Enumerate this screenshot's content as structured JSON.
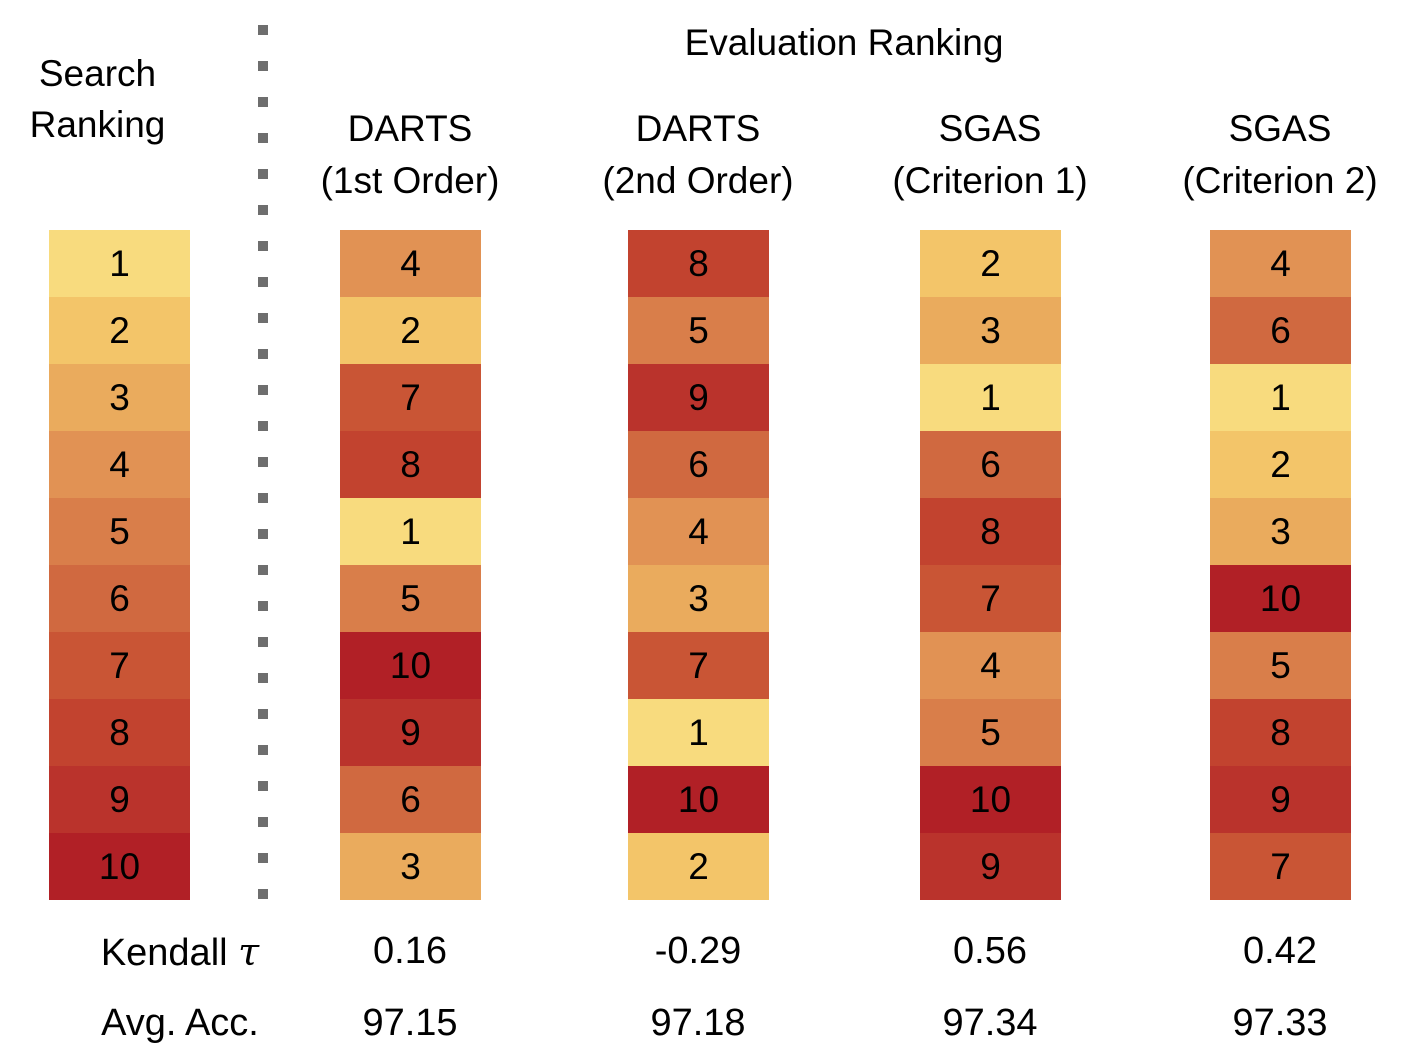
{
  "ui": {
    "search_label_line1": "Search",
    "search_label_line2": "Ranking",
    "eval_title": "Evaluation Ranking",
    "kendall_label": "Kendall",
    "tau_symbol": "τ",
    "avg_label": "Avg. Acc."
  },
  "chart_data": {
    "type": "heatmap",
    "title": "Evaluation Ranking",
    "row_axis_label": "Search Ranking",
    "search_ranking": [
      1,
      2,
      3,
      4,
      5,
      6,
      7,
      8,
      9,
      10
    ],
    "series": [
      {
        "name": "DARTS (1st Order)",
        "name_lines": [
          "DARTS",
          "(1st Order)"
        ],
        "evaluation_ranking": [
          4,
          2,
          7,
          8,
          1,
          5,
          10,
          9,
          6,
          3
        ],
        "kendall_tau": "0.16",
        "avg_acc": "97.15"
      },
      {
        "name": "DARTS (2nd Order)",
        "name_lines": [
          "DARTS",
          "(2nd Order)"
        ],
        "evaluation_ranking": [
          8,
          5,
          9,
          6,
          4,
          3,
          7,
          1,
          10,
          2
        ],
        "kendall_tau": "-0.29",
        "avg_acc": "97.18"
      },
      {
        "name": "SGAS (Criterion 1)",
        "name_lines": [
          "SGAS",
          "(Criterion 1)"
        ],
        "evaluation_ranking": [
          2,
          3,
          1,
          6,
          8,
          7,
          4,
          5,
          10,
          9
        ],
        "kendall_tau": "0.56",
        "avg_acc": "97.34"
      },
      {
        "name": "SGAS (Criterion 2)",
        "name_lines": [
          "SGAS",
          "(Criterion 2)"
        ],
        "evaluation_ranking": [
          4,
          6,
          1,
          2,
          3,
          10,
          5,
          8,
          9,
          7
        ],
        "kendall_tau": "0.42",
        "avg_acc": "97.33"
      }
    ],
    "colormap": {
      "1": "#F8DB7E",
      "2": "#F3C569",
      "3": "#EAAB5D",
      "4": "#E19254",
      "5": "#D97E4A",
      "6": "#D06940",
      "7": "#C95535",
      "8": "#C2432F",
      "9": "#BA332C",
      "10": "#B12026"
    },
    "separator_color": "#6e6e6e",
    "legend_position": "none",
    "grid": false
  }
}
